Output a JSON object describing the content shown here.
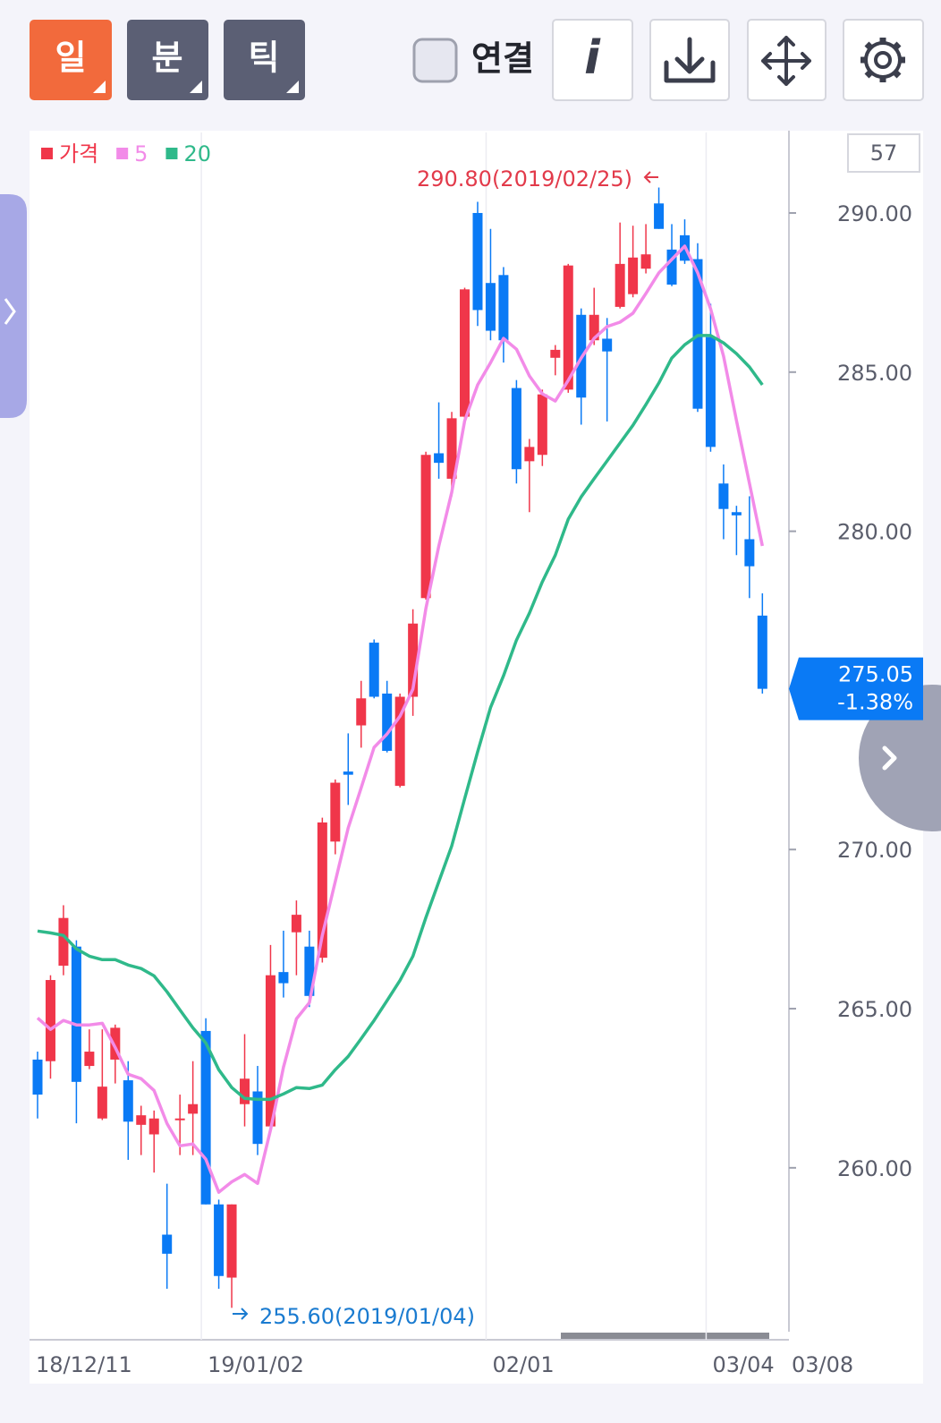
{
  "toolbar": {
    "buttons": [
      "일",
      "분",
      "틱"
    ],
    "checkbox_label": "연결",
    "info": "i"
  },
  "chart_data": {
    "type": "candlestick",
    "count_label": 57,
    "categories": [
      "18/12/11",
      null,
      null,
      null,
      null,
      null,
      null,
      null,
      null,
      null,
      null,
      null,
      null,
      "19/01/02",
      null,
      null,
      null,
      null,
      null,
      null,
      null,
      null,
      null,
      null,
      null,
      null,
      null,
      null,
      null,
      null,
      null,
      null,
      null,
      null,
      null,
      "02/01",
      null,
      null,
      null,
      null,
      null,
      null,
      null,
      null,
      null,
      null,
      null,
      null,
      null,
      null,
      null,
      null,
      "03/04",
      null,
      null,
      null,
      "03/08"
    ],
    "series": [
      {
        "name": "가격",
        "color": "#f0364a",
        "down_color": "#0a7af5",
        "open": [
          263.4,
          263.35,
          266.35,
          266.95,
          263.2,
          261.55,
          263.4,
          262.75,
          261.35,
          261.05,
          257.9,
          261.5,
          261.7,
          264.3,
          258.85,
          256.55,
          262.0,
          262.4,
          261.3,
          266.15,
          267.4,
          266.95,
          266.6,
          270.25,
          272.45,
          273.9,
          276.5,
          274.9,
          272.0,
          274.8,
          277.9,
          282.45,
          281.65,
          283.6,
          290.0,
          287.8,
          288.05,
          284.5,
          282.2,
          282.4,
          285.45,
          284.45,
          286.8,
          286.0,
          286.05,
          287.05,
          287.45,
          288.25,
          290.3,
          288.85,
          289.3,
          288.55,
          286.1,
          281.5,
          280.6,
          279.75,
          277.35
        ],
        "high": [
          263.65,
          266.05,
          268.25,
          267.15,
          264.35,
          264.35,
          264.5,
          263.35,
          261.95,
          261.8,
          259.5,
          262.3,
          263.35,
          264.7,
          259.0,
          258.85,
          264.2,
          263.2,
          267.0,
          267.45,
          268.4,
          267.45,
          271.0,
          272.2,
          273.65,
          275.3,
          276.6,
          275.3,
          274.9,
          277.55,
          282.5,
          284.05,
          283.75,
          287.65,
          290.35,
          289.5,
          288.3,
          284.75,
          282.9,
          284.45,
          285.85,
          288.4,
          287.0,
          287.65,
          286.7,
          289.7,
          289.6,
          289.65,
          290.8,
          289.65,
          289.8,
          289.05,
          287.15,
          282.1,
          280.8,
          281.1,
          278.05
        ],
        "low": [
          261.55,
          262.8,
          266.05,
          261.4,
          263.1,
          261.5,
          262.65,
          260.25,
          260.4,
          259.85,
          256.2,
          260.4,
          260.4,
          258.85,
          256.2,
          255.6,
          261.3,
          260.4,
          261.25,
          265.35,
          266.05,
          265.05,
          266.45,
          269.85,
          271.4,
          273.2,
          274.75,
          273.05,
          271.95,
          274.2,
          277.85,
          281.65,
          281.1,
          283.55,
          286.45,
          286.0,
          285.3,
          281.5,
          280.6,
          282.05,
          284.9,
          284.35,
          283.35,
          285.85,
          283.45,
          287.0,
          287.35,
          288.1,
          289.5,
          287.7,
          288.4,
          283.75,
          282.5,
          279.75,
          279.25,
          277.9,
          274.9
        ],
        "close": [
          262.3,
          265.9,
          267.85,
          262.7,
          263.65,
          262.55,
          264.4,
          261.45,
          261.65,
          261.55,
          257.3,
          261.55,
          262.0,
          258.85,
          256.6,
          258.85,
          262.8,
          260.75,
          266.05,
          265.8,
          267.95,
          265.4,
          270.85,
          272.1,
          272.35,
          274.75,
          274.8,
          273.1,
          274.8,
          277.1,
          282.4,
          282.15,
          283.55,
          287.6,
          286.95,
          286.3,
          286.0,
          281.95,
          282.65,
          284.3,
          285.7,
          288.35,
          284.2,
          286.8,
          285.65,
          288.4,
          288.6,
          288.7,
          289.5,
          287.75,
          288.5,
          283.85,
          282.65,
          280.7,
          280.5,
          278.9,
          275.05
        ]
      },
      {
        "name": "5",
        "color": "#f28be8",
        "values": [
          264.71,
          264.35,
          264.63,
          264.49,
          264.49,
          264.54,
          263.78,
          262.94,
          262.8,
          262.43,
          261.39,
          260.69,
          260.75,
          260.27,
          259.23,
          259.56,
          259.79,
          259.51,
          261.2,
          263.16,
          264.68,
          265.19,
          267.3,
          268.99,
          270.68,
          271.94,
          273.21,
          273.63,
          274.19,
          275.04,
          277.57,
          279.54,
          281.22,
          283.47,
          284.6,
          285.3,
          286.06,
          285.72,
          284.88,
          284.32,
          284.09,
          284.74,
          285.44,
          286.06,
          286.43,
          286.57,
          286.85,
          287.47,
          288.12,
          288.54,
          288.96,
          288.12,
          286.99,
          285.5,
          283.47,
          281.5,
          279.54
        ]
      },
      {
        "name": "20",
        "color": "#2fb98a",
        "values": [
          267.44,
          267.38,
          267.3,
          266.88,
          266.65,
          266.54,
          266.54,
          266.37,
          266.26,
          266.03,
          265.53,
          264.96,
          264.4,
          263.92,
          263.08,
          262.52,
          262.18,
          262.15,
          262.15,
          262.32,
          262.52,
          262.49,
          262.6,
          263.08,
          263.5,
          264.06,
          264.63,
          265.25,
          265.89,
          266.65,
          267.86,
          268.99,
          270.11,
          271.6,
          273.07,
          274.47,
          275.46,
          276.58,
          277.43,
          278.41,
          279.25,
          280.38,
          281.08,
          281.65,
          282.21,
          282.77,
          283.33,
          283.98,
          284.66,
          285.44,
          285.86,
          286.15,
          286.15,
          285.92,
          285.58,
          285.16,
          284.6
        ]
      }
    ],
    "ylim": [
      254.85,
      292.53
    ],
    "yticks": [
      {
        "value": 260,
        "label": "260.00"
      },
      {
        "value": 265,
        "label": "265.00"
      },
      {
        "value": 270,
        "label": "270.00"
      },
      {
        "value": 280,
        "label": "280.00"
      },
      {
        "value": 285,
        "label": "285.00"
      },
      {
        "value": 290,
        "label": "290.00"
      }
    ],
    "annotations": [
      {
        "text": "290.80(2019/02/25)",
        "color": "#e23a4a"
      },
      {
        "text": "255.60(2019/01/04)",
        "color": "#1a7bd0"
      }
    ],
    "last_price": 275.05,
    "change_label": "-1.38%",
    "last_color": "#0a7af5"
  }
}
